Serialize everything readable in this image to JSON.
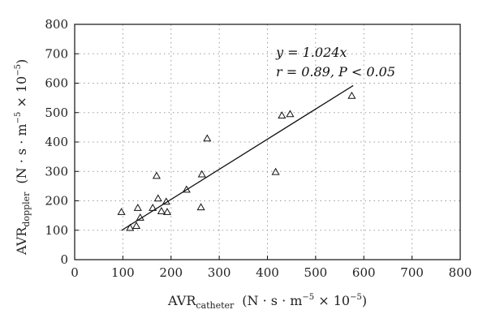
{
  "chart_data": {
    "type": "scatter",
    "title": "",
    "xlabel": {
      "main": "AVR",
      "sub": "catheter",
      "units_prefix": "(N · s · m",
      "units_exp1": "−5",
      "units_mid": " × 10",
      "units_exp2": "−5",
      "units_suffix": ")"
    },
    "ylabel": {
      "main": "AVR",
      "sub": "doppler",
      "units_prefix": "(N · s · m",
      "units_exp1": "−5",
      "units_mid": " × 10",
      "units_exp2": "−5",
      "units_suffix": ")"
    },
    "xlim": [
      0,
      800
    ],
    "ylim": [
      0,
      800
    ],
    "xticks": [
      "0",
      "100",
      "200",
      "300",
      "400",
      "500",
      "600",
      "700",
      "800"
    ],
    "yticks": [
      "0",
      "100",
      "200",
      "300",
      "400",
      "500",
      "600",
      "700",
      "800"
    ],
    "grid": true,
    "marker": "triangle-open",
    "points": [
      {
        "x": 97,
        "y": 162
      },
      {
        "x": 115,
        "y": 108
      },
      {
        "x": 128,
        "y": 115
      },
      {
        "x": 131,
        "y": 176
      },
      {
        "x": 136,
        "y": 143
      },
      {
        "x": 162,
        "y": 176
      },
      {
        "x": 170,
        "y": 285
      },
      {
        "x": 173,
        "y": 208
      },
      {
        "x": 180,
        "y": 165
      },
      {
        "x": 190,
        "y": 197
      },
      {
        "x": 192,
        "y": 162
      },
      {
        "x": 232,
        "y": 238
      },
      {
        "x": 262,
        "y": 178
      },
      {
        "x": 264,
        "y": 290
      },
      {
        "x": 275,
        "y": 412
      },
      {
        "x": 417,
        "y": 298
      },
      {
        "x": 430,
        "y": 490
      },
      {
        "x": 447,
        "y": 495
      },
      {
        "x": 575,
        "y": 557
      }
    ],
    "fit_line": {
      "slope": 1.024,
      "intercept": 0,
      "x_start": 97,
      "x_end": 578
    },
    "annotations": {
      "equation": "y = 1.024x",
      "stats": "r = 0.89, P < 0.05"
    }
  }
}
